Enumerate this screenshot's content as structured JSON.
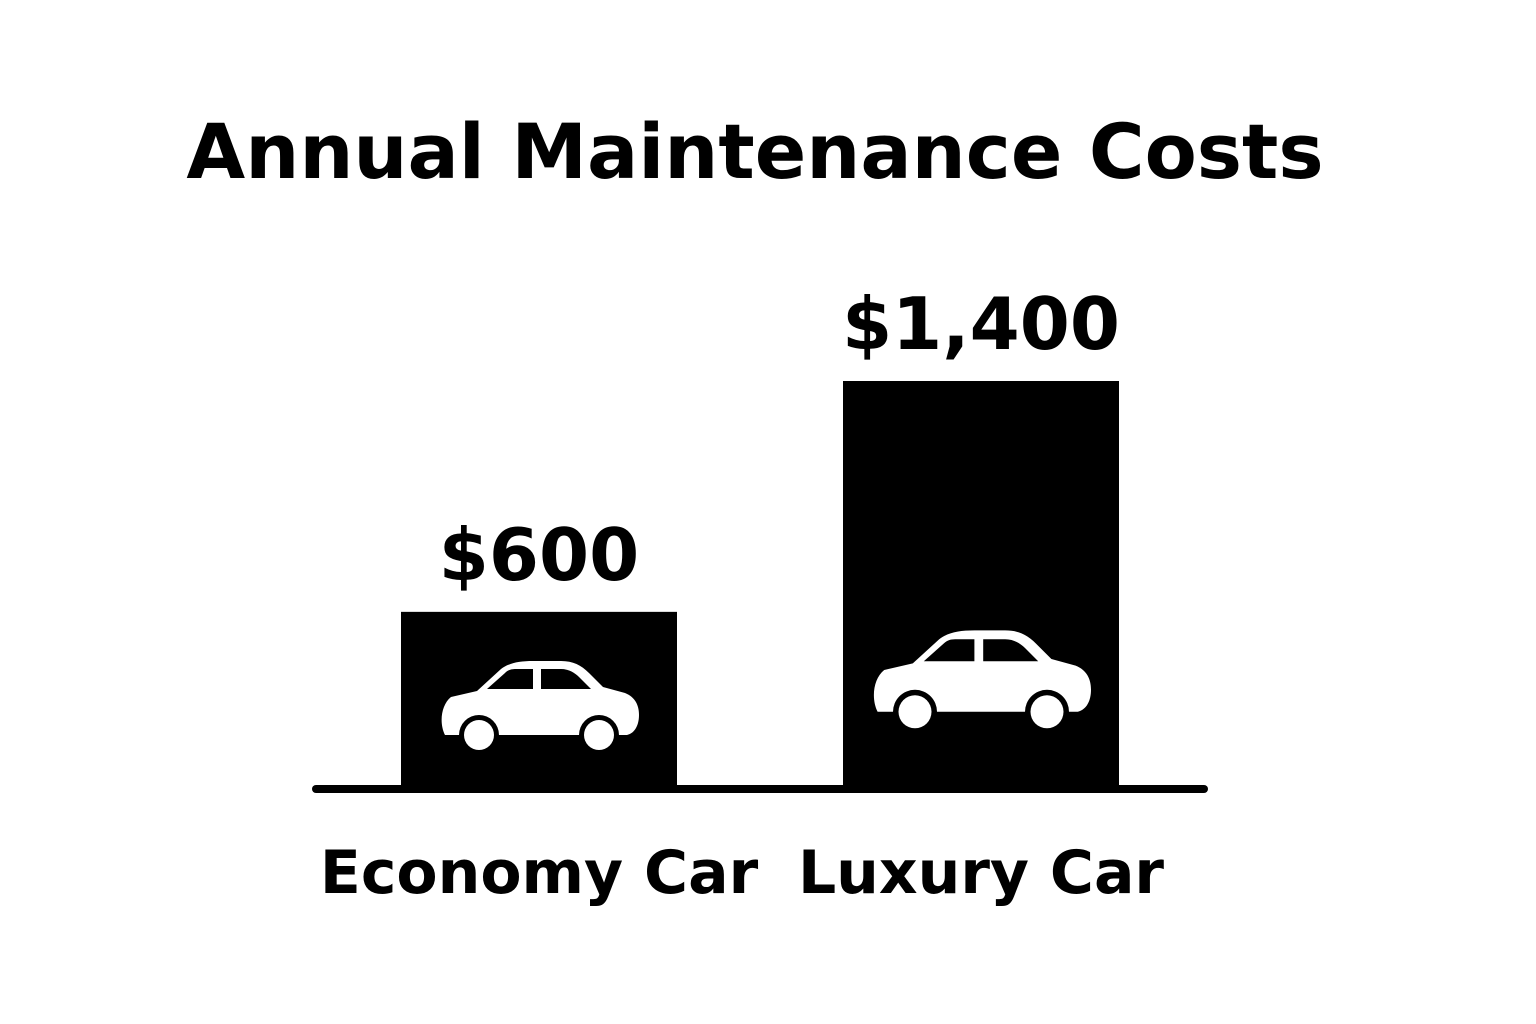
{
  "chart_data": {
    "type": "bar",
    "title": "Annual Maintenance Costs",
    "xlabel": "",
    "ylabel": "",
    "categories": [
      "Economy Car",
      "Luxury Car"
    ],
    "values": [
      600,
      1400
    ],
    "data_labels": [
      "$600",
      "$1,400"
    ],
    "unit": "$",
    "ylim": [
      0,
      1400
    ],
    "grid": false,
    "legend": "none",
    "bar_icons": [
      "car-icon",
      "car-icon"
    ]
  },
  "colors": {
    "background": "#ffffff",
    "bar": "#000000",
    "icon": "#ffffff",
    "axis": "#000000",
    "text": "#000000"
  }
}
